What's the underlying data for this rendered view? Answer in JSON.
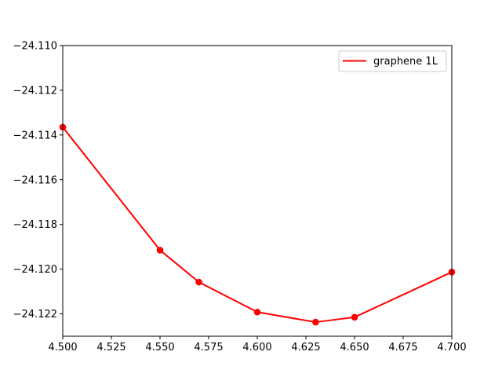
{
  "chart_data": {
    "type": "line",
    "title": "",
    "xlabel": "",
    "ylabel": "",
    "xlim": [
      4.5,
      4.7
    ],
    "ylim": [
      -24.123,
      -24.11
    ],
    "x_ticks": [
      4.5,
      4.525,
      4.55,
      4.575,
      4.6,
      4.625,
      4.65,
      4.675,
      4.7
    ],
    "x_tick_labels": [
      "4.500",
      "4.525",
      "4.550",
      "4.575",
      "4.600",
      "4.625",
      "4.650",
      "4.675",
      "4.700"
    ],
    "y_ticks": [
      -24.11,
      -24.112,
      -24.114,
      -24.116,
      -24.118,
      -24.12,
      -24.122
    ],
    "y_tick_labels": [
      "−24.110",
      "−24.112",
      "−24.114",
      "−24.116",
      "−24.118",
      "−24.120",
      "−24.122"
    ],
    "grid": false,
    "legend_position": "upper right",
    "series": [
      {
        "name": "graphene 1L",
        "color": "#ff0000",
        "marker": "circle",
        "x": [
          4.5,
          4.55,
          4.57,
          4.6,
          4.63,
          4.65,
          4.7
        ],
        "y": [
          -24.11365,
          -24.11915,
          -24.12058,
          -24.12192,
          -24.12237,
          -24.12215,
          -24.12013
        ]
      }
    ]
  }
}
